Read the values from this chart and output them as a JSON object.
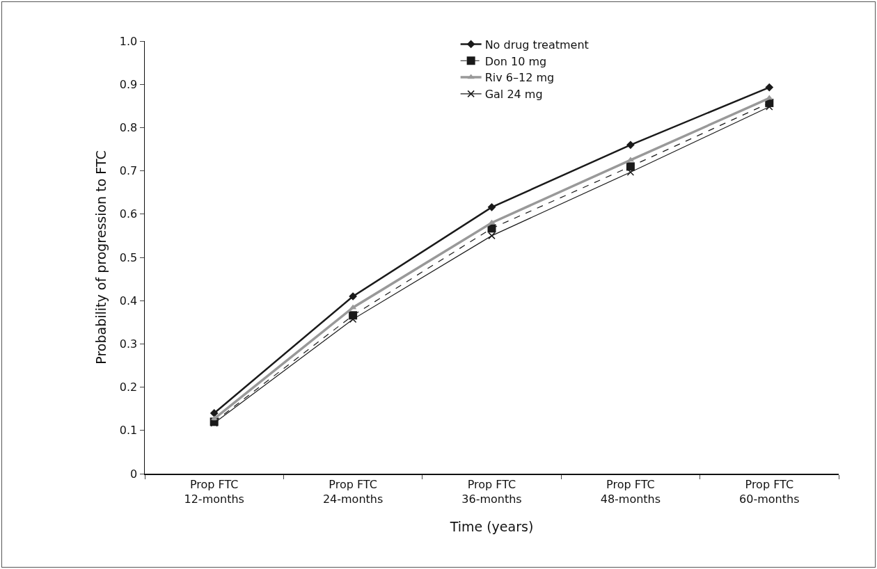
{
  "chart_data": {
    "type": "line",
    "xlabel": "Time (years)",
    "ylabel": "Probability of progression to FTC",
    "categories": [
      "Prop FTC\n12-months",
      "Prop FTC\n24-months",
      "Prop FTC\n36-months",
      "Prop FTC\n48-months",
      "Prop FTC\n60-months"
    ],
    "ylim": [
      0,
      1
    ],
    "yticks": [
      0,
      {
        "value": 0.1,
        "label": "0.1"
      },
      {
        "value": 0.2,
        "label": "0.2"
      },
      {
        "value": 0.3,
        "label": "0.3"
      },
      {
        "value": 0.4,
        "label": "0.4"
      },
      {
        "value": 0.5,
        "label": "0.5"
      },
      {
        "value": 0.6,
        "label": "0.6"
      },
      {
        "value": 0.7,
        "label": "0.7"
      },
      {
        "value": 0.8,
        "label": "0.8"
      },
      {
        "value": 0.9,
        "label": "0.9"
      },
      {
        "value": 1,
        "label": "1.0"
      }
    ],
    "grid": false,
    "legend": "top",
    "series": [
      {
        "name": "No drug treatment",
        "color": "#1a1a1a",
        "marker": "diamond",
        "line_style": "solid",
        "values": [
          0.14,
          0.41,
          0.616,
          0.76,
          0.893
        ]
      },
      {
        "name": "Don 10 mg",
        "color": "#1a1a1a",
        "marker": "square",
        "line_style": "dashed",
        "values": [
          0.12,
          0.366,
          0.567,
          0.71,
          0.857
        ]
      },
      {
        "name": "Riv 6–12 mg",
        "color": "#999999",
        "marker": "triangle",
        "line_style": "solid",
        "values": [
          0.127,
          0.384,
          0.58,
          0.725,
          0.868
        ]
      },
      {
        "name": "Gal 24 mg",
        "color": "#1a1a1a",
        "marker": "cross",
        "line_style": "solid",
        "values": [
          0.117,
          0.357,
          0.55,
          0.697,
          0.848
        ]
      }
    ]
  }
}
